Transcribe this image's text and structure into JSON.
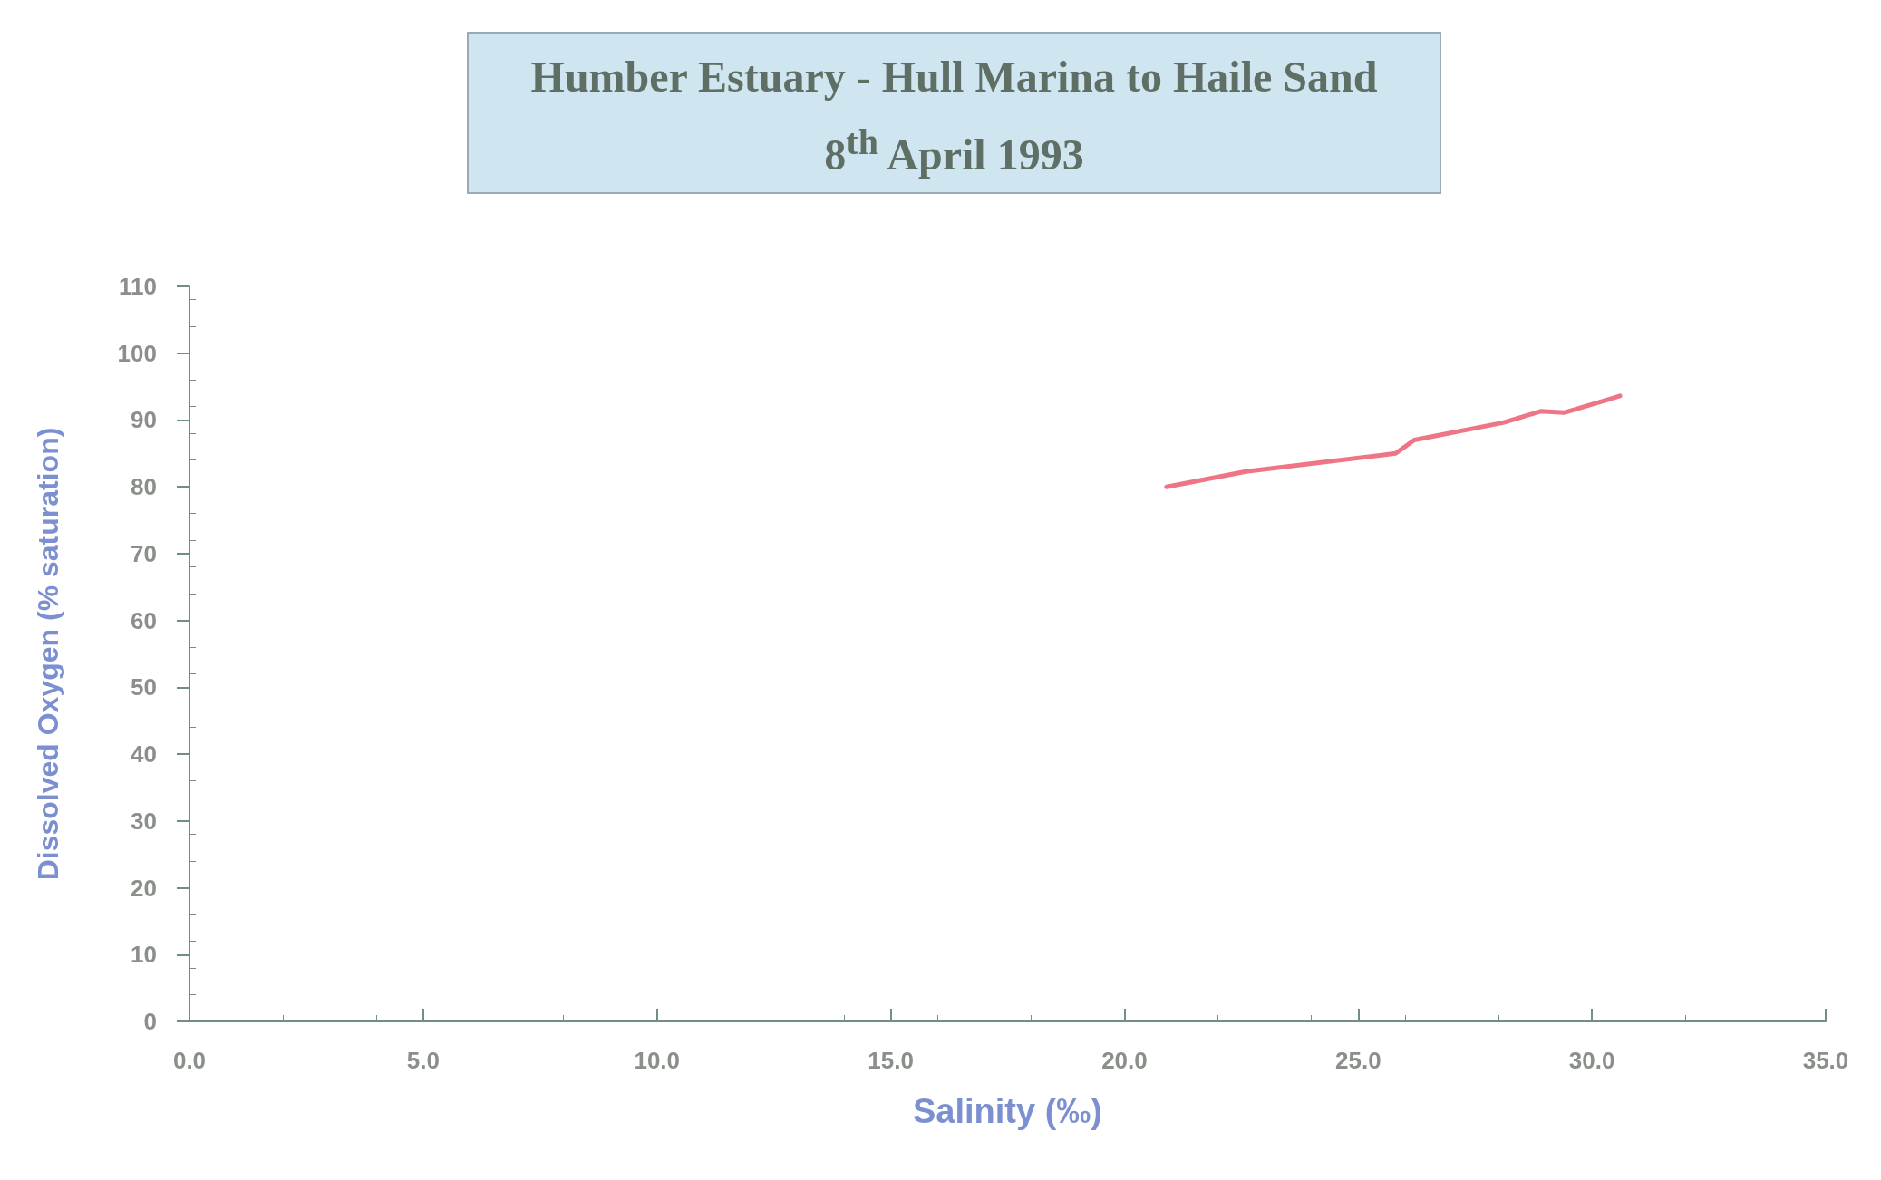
{
  "chart_data": {
    "type": "line",
    "title": "Humber Estuary - Hull Marina to Haile Sand",
    "subtitle": "8$^{th}$ April 1993",
    "xlabel": "Salinity (‰)",
    "ylabel": "Dissolved Oxygen (% saturation)",
    "x": [
      20.9,
      22.6,
      25.8,
      26.2,
      28.1,
      28.9,
      29.4,
      30.6
    ],
    "series": [
      {
        "color": "#ee7585",
        "values": [
          80.0,
          82.3,
          85.0,
          87.0,
          89.6,
          91.3,
          91.1,
          93.6
        ]
      }
    ],
    "xlim": [
      0,
      35
    ],
    "xticks": [
      {
        "value": 0,
        "label": "0.0"
      },
      {
        "value": 5,
        "label": "5.0"
      },
      {
        "value": 10,
        "label": "10.0"
      },
      {
        "value": 15,
        "label": "15.0"
      },
      {
        "value": 20,
        "label": "20.0"
      },
      {
        "value": 25,
        "label": "25.0"
      },
      {
        "value": 30,
        "label": "30.0"
      },
      {
        "value": 35,
        "label": "35.0"
      }
    ],
    "ylim": [
      0,
      110
    ],
    "yticks": [
      0,
      10,
      20,
      30,
      40,
      50,
      60,
      70,
      80,
      90,
      100,
      110
    ],
    "grid": false,
    "marker": "none",
    "line_style": "solid"
  }
}
